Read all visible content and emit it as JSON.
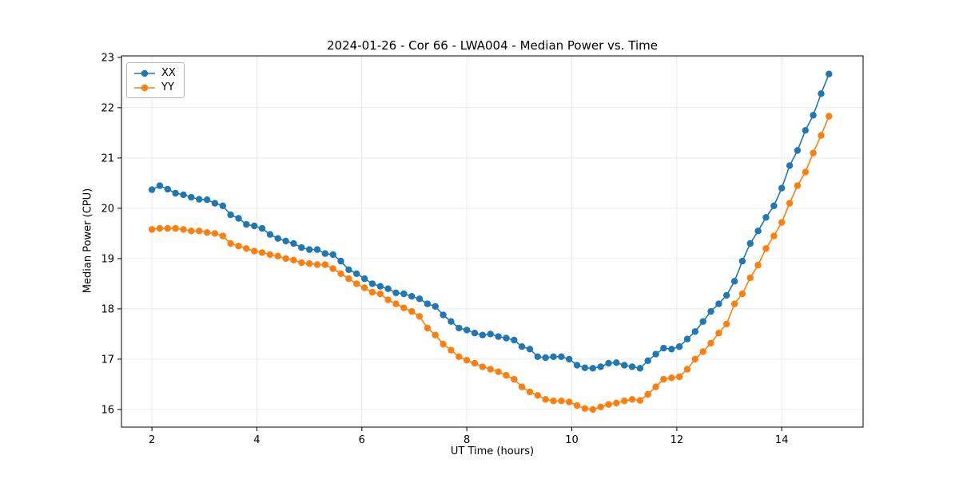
{
  "chart": {
    "title": "2024-01-26 - Cor 66 - LWA004 - Median Power vs. Time",
    "xlabel": "UT Time (hours)",
    "ylabel": "Median Power (CPU)"
  },
  "chart_data": {
    "type": "line",
    "title": "2024-01-26 - Cor 66 - LWA004 - Median Power vs. Time",
    "xlabel": "UT Time (hours)",
    "ylabel": "Median Power (CPU)",
    "xlim": [
      1.42,
      15.55
    ],
    "ylim": [
      15.65,
      23.03
    ],
    "xticks": [
      2,
      4,
      6,
      8,
      10,
      12,
      14
    ],
    "yticks": [
      16,
      17,
      18,
      19,
      20,
      21,
      22,
      23
    ],
    "grid": true,
    "legend_position": "upper left",
    "marker": "circle",
    "x": [
      2.0,
      2.15,
      2.3,
      2.45,
      2.6,
      2.75,
      2.9,
      3.05,
      3.2,
      3.35,
      3.5,
      3.65,
      3.8,
      3.95,
      4.1,
      4.25,
      4.4,
      4.55,
      4.7,
      4.85,
      5.0,
      5.15,
      5.3,
      5.45,
      5.6,
      5.75,
      5.9,
      6.05,
      6.2,
      6.35,
      6.5,
      6.65,
      6.8,
      6.95,
      7.1,
      7.25,
      7.4,
      7.55,
      7.7,
      7.85,
      8.0,
      8.15,
      8.3,
      8.45,
      8.6,
      8.75,
      8.9,
      9.05,
      9.2,
      9.35,
      9.5,
      9.65,
      9.8,
      9.95,
      10.1,
      10.25,
      10.4,
      10.55,
      10.7,
      10.85,
      11.0,
      11.15,
      11.3,
      11.45,
      11.6,
      11.75,
      11.9,
      12.05,
      12.2,
      12.35,
      12.5,
      12.65,
      12.8,
      12.95,
      13.1,
      13.25,
      13.4,
      13.55,
      13.7,
      13.85,
      14.0,
      14.15,
      14.3,
      14.45,
      14.6,
      14.75,
      14.9
    ],
    "series": [
      {
        "name": "XX",
        "color": "#1f77b4",
        "values": [
          20.37,
          20.45,
          20.38,
          20.3,
          20.27,
          20.22,
          20.18,
          20.17,
          20.1,
          20.05,
          19.87,
          19.8,
          19.68,
          19.65,
          19.6,
          19.48,
          19.4,
          19.35,
          19.3,
          19.22,
          19.18,
          19.18,
          19.1,
          19.08,
          18.95,
          18.78,
          18.7,
          18.6,
          18.5,
          18.45,
          18.4,
          18.32,
          18.3,
          18.25,
          18.2,
          18.1,
          18.05,
          17.88,
          17.75,
          17.62,
          17.58,
          17.52,
          17.48,
          17.5,
          17.45,
          17.42,
          17.38,
          17.25,
          17.2,
          17.05,
          17.03,
          17.05,
          17.05,
          17.0,
          16.88,
          16.83,
          16.82,
          16.85,
          16.92,
          16.93,
          16.88,
          16.85,
          16.82,
          16.97,
          17.1,
          17.22,
          17.2,
          17.25,
          17.4,
          17.55,
          17.75,
          17.95,
          18.1,
          18.27,
          18.55,
          18.95,
          19.3,
          19.55,
          19.82,
          20.05,
          20.4,
          20.85,
          21.15,
          21.55,
          21.85,
          22.28,
          22.67
        ]
      },
      {
        "name": "YY",
        "color": "#ff7f0e",
        "values": [
          19.58,
          19.6,
          19.6,
          19.6,
          19.58,
          19.55,
          19.55,
          19.52,
          19.5,
          19.45,
          19.3,
          19.25,
          19.2,
          19.15,
          19.12,
          19.08,
          19.05,
          19.0,
          18.97,
          18.92,
          18.9,
          18.88,
          18.88,
          18.8,
          18.7,
          18.6,
          18.5,
          18.42,
          18.33,
          18.3,
          18.18,
          18.1,
          18.02,
          17.95,
          17.85,
          17.62,
          17.48,
          17.3,
          17.18,
          17.05,
          16.98,
          16.92,
          16.85,
          16.8,
          16.75,
          16.68,
          16.6,
          16.45,
          16.35,
          16.28,
          16.2,
          16.17,
          16.17,
          16.15,
          16.08,
          16.02,
          16.0,
          16.05,
          16.1,
          16.13,
          16.17,
          16.2,
          16.18,
          16.3,
          16.45,
          16.6,
          16.63,
          16.65,
          16.8,
          17.0,
          17.15,
          17.32,
          17.52,
          17.7,
          18.1,
          18.3,
          18.62,
          18.87,
          19.2,
          19.45,
          19.72,
          20.1,
          20.45,
          20.72,
          21.1,
          21.45,
          21.83
        ]
      }
    ]
  }
}
